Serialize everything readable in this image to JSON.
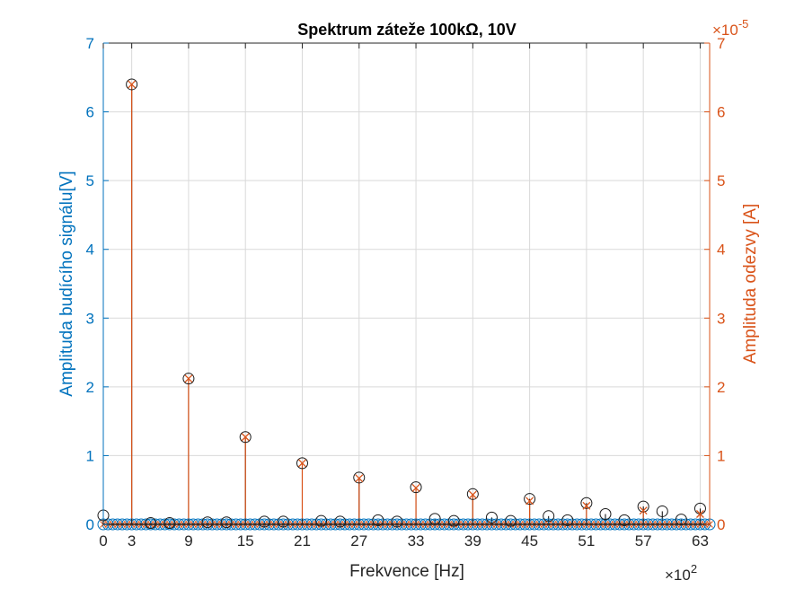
{
  "colors": {
    "left_axis": "#0072BD",
    "right_axis": "#D95319",
    "grid": "#D9D9D9",
    "axis": "#262626",
    "stem": "#000000",
    "series_left": "#0072BD",
    "series_right": "#D95319"
  },
  "chart_data": {
    "type": "stem",
    "title": "Spektrum záteže 100kΩ, 10V",
    "xlabel": "Frekvence [Hz]",
    "x_exponent_label": "×10",
    "x_exponent_power": "2",
    "ylabel_left": "Amplituda budícího signálu[V]",
    "ylabel_right": "Amplituda odezvy [A]",
    "y_right_exponent_label": "×10",
    "y_right_exponent_power": "-5",
    "xlim": [
      0,
      64
    ],
    "ylim_left": [
      0,
      7
    ],
    "ylim_right": [
      0,
      7
    ],
    "x_ticks": [
      0,
      3,
      9,
      15,
      21,
      27,
      33,
      39,
      45,
      51,
      57,
      63
    ],
    "x_tick_labels": [
      "0",
      "3",
      "9",
      "15",
      "21",
      "27",
      "33",
      "39",
      "45",
      "51",
      "57",
      "63"
    ],
    "y_ticks_left": [
      0,
      1,
      2,
      3,
      4,
      5,
      6,
      7
    ],
    "y_tick_labels_left": [
      "0",
      "1",
      "2",
      "3",
      "4",
      "5",
      "6",
      "7"
    ],
    "y_ticks_right": [
      0,
      1,
      2,
      3,
      4,
      5,
      6,
      7
    ],
    "y_tick_labels_right": [
      "0",
      "1",
      "2",
      "3",
      "4",
      "5",
      "6",
      "7"
    ],
    "grid": true,
    "series": [
      {
        "axis": "left",
        "marker": "circle",
        "x": [
          0,
          3,
          5,
          7,
          9,
          11,
          13,
          15,
          17,
          19,
          21,
          23,
          25,
          27,
          29,
          31,
          33,
          35,
          37,
          39,
          41,
          43,
          45,
          47,
          49,
          51,
          53,
          55,
          57,
          59,
          61,
          63
        ],
        "values": [
          0.13,
          6.4,
          0.02,
          0.02,
          2.12,
          0.03,
          0.03,
          1.27,
          0.04,
          0.04,
          0.89,
          0.05,
          0.04,
          0.68,
          0.06,
          0.04,
          0.54,
          0.08,
          0.05,
          0.44,
          0.1,
          0.05,
          0.37,
          0.12,
          0.06,
          0.31,
          0.15,
          0.06,
          0.26,
          0.19,
          0.07,
          0.23
        ]
      },
      {
        "axis": "right",
        "marker": "x",
        "x": [
          3,
          9,
          15,
          21,
          27,
          33,
          39,
          45,
          51,
          57,
          63
        ],
        "values": [
          6.4,
          2.12,
          1.27,
          0.89,
          0.67,
          0.53,
          0.43,
          0.34,
          0.27,
          0.2,
          0.15
        ]
      }
    ]
  }
}
